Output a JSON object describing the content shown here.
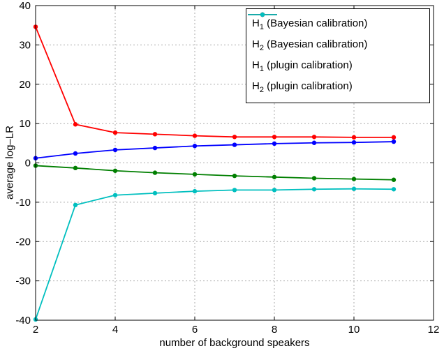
{
  "chart_data": {
    "type": "line",
    "title": "",
    "xlabel": "number of background speakers",
    "ylabel": "average log–LR",
    "xlim": [
      2,
      12
    ],
    "ylim": [
      -40,
      40
    ],
    "xticks": [
      2,
      4,
      6,
      8,
      10,
      12
    ],
    "yticks": [
      -40,
      -30,
      -20,
      -10,
      0,
      10,
      20,
      30,
      40
    ],
    "grid": true,
    "legend_position": "top-right",
    "x": [
      2,
      3,
      4,
      5,
      6,
      7,
      8,
      9,
      10,
      11
    ],
    "series": [
      {
        "name": "H_1 (Bayesian calibration)",
        "label": {
          "base": "H",
          "sub": "1",
          "rest": " (Bayesian calibration)"
        },
        "color": "#0000ff",
        "values": [
          1.2,
          2.4,
          3.3,
          3.8,
          4.3,
          4.6,
          4.9,
          5.1,
          5.2,
          5.4
        ]
      },
      {
        "name": "H_2 (Bayesian calibration)",
        "label": {
          "base": "H",
          "sub": "2",
          "rest": " (Bayesian calibration)"
        },
        "color": "#007f00",
        "values": [
          -0.7,
          -1.3,
          -2.0,
          -2.5,
          -2.9,
          -3.3,
          -3.6,
          -3.9,
          -4.1,
          -4.3
        ]
      },
      {
        "name": "H_1 (plugin calibration)",
        "label": {
          "base": "H",
          "sub": "1",
          "rest": " (plugin calibration)"
        },
        "color": "#ff0000",
        "values": [
          34.6,
          9.8,
          7.7,
          7.3,
          6.9,
          6.6,
          6.6,
          6.6,
          6.5,
          6.5
        ]
      },
      {
        "name": "H_2 (plugin calibration)",
        "label": {
          "base": "H",
          "sub": "2",
          "rest": " (plugin calibration)"
        },
        "color": "#00bfbf",
        "values": [
          -39.8,
          -10.7,
          -8.2,
          -7.7,
          -7.2,
          -6.9,
          -6.9,
          -6.7,
          -6.6,
          -6.7
        ]
      }
    ]
  }
}
